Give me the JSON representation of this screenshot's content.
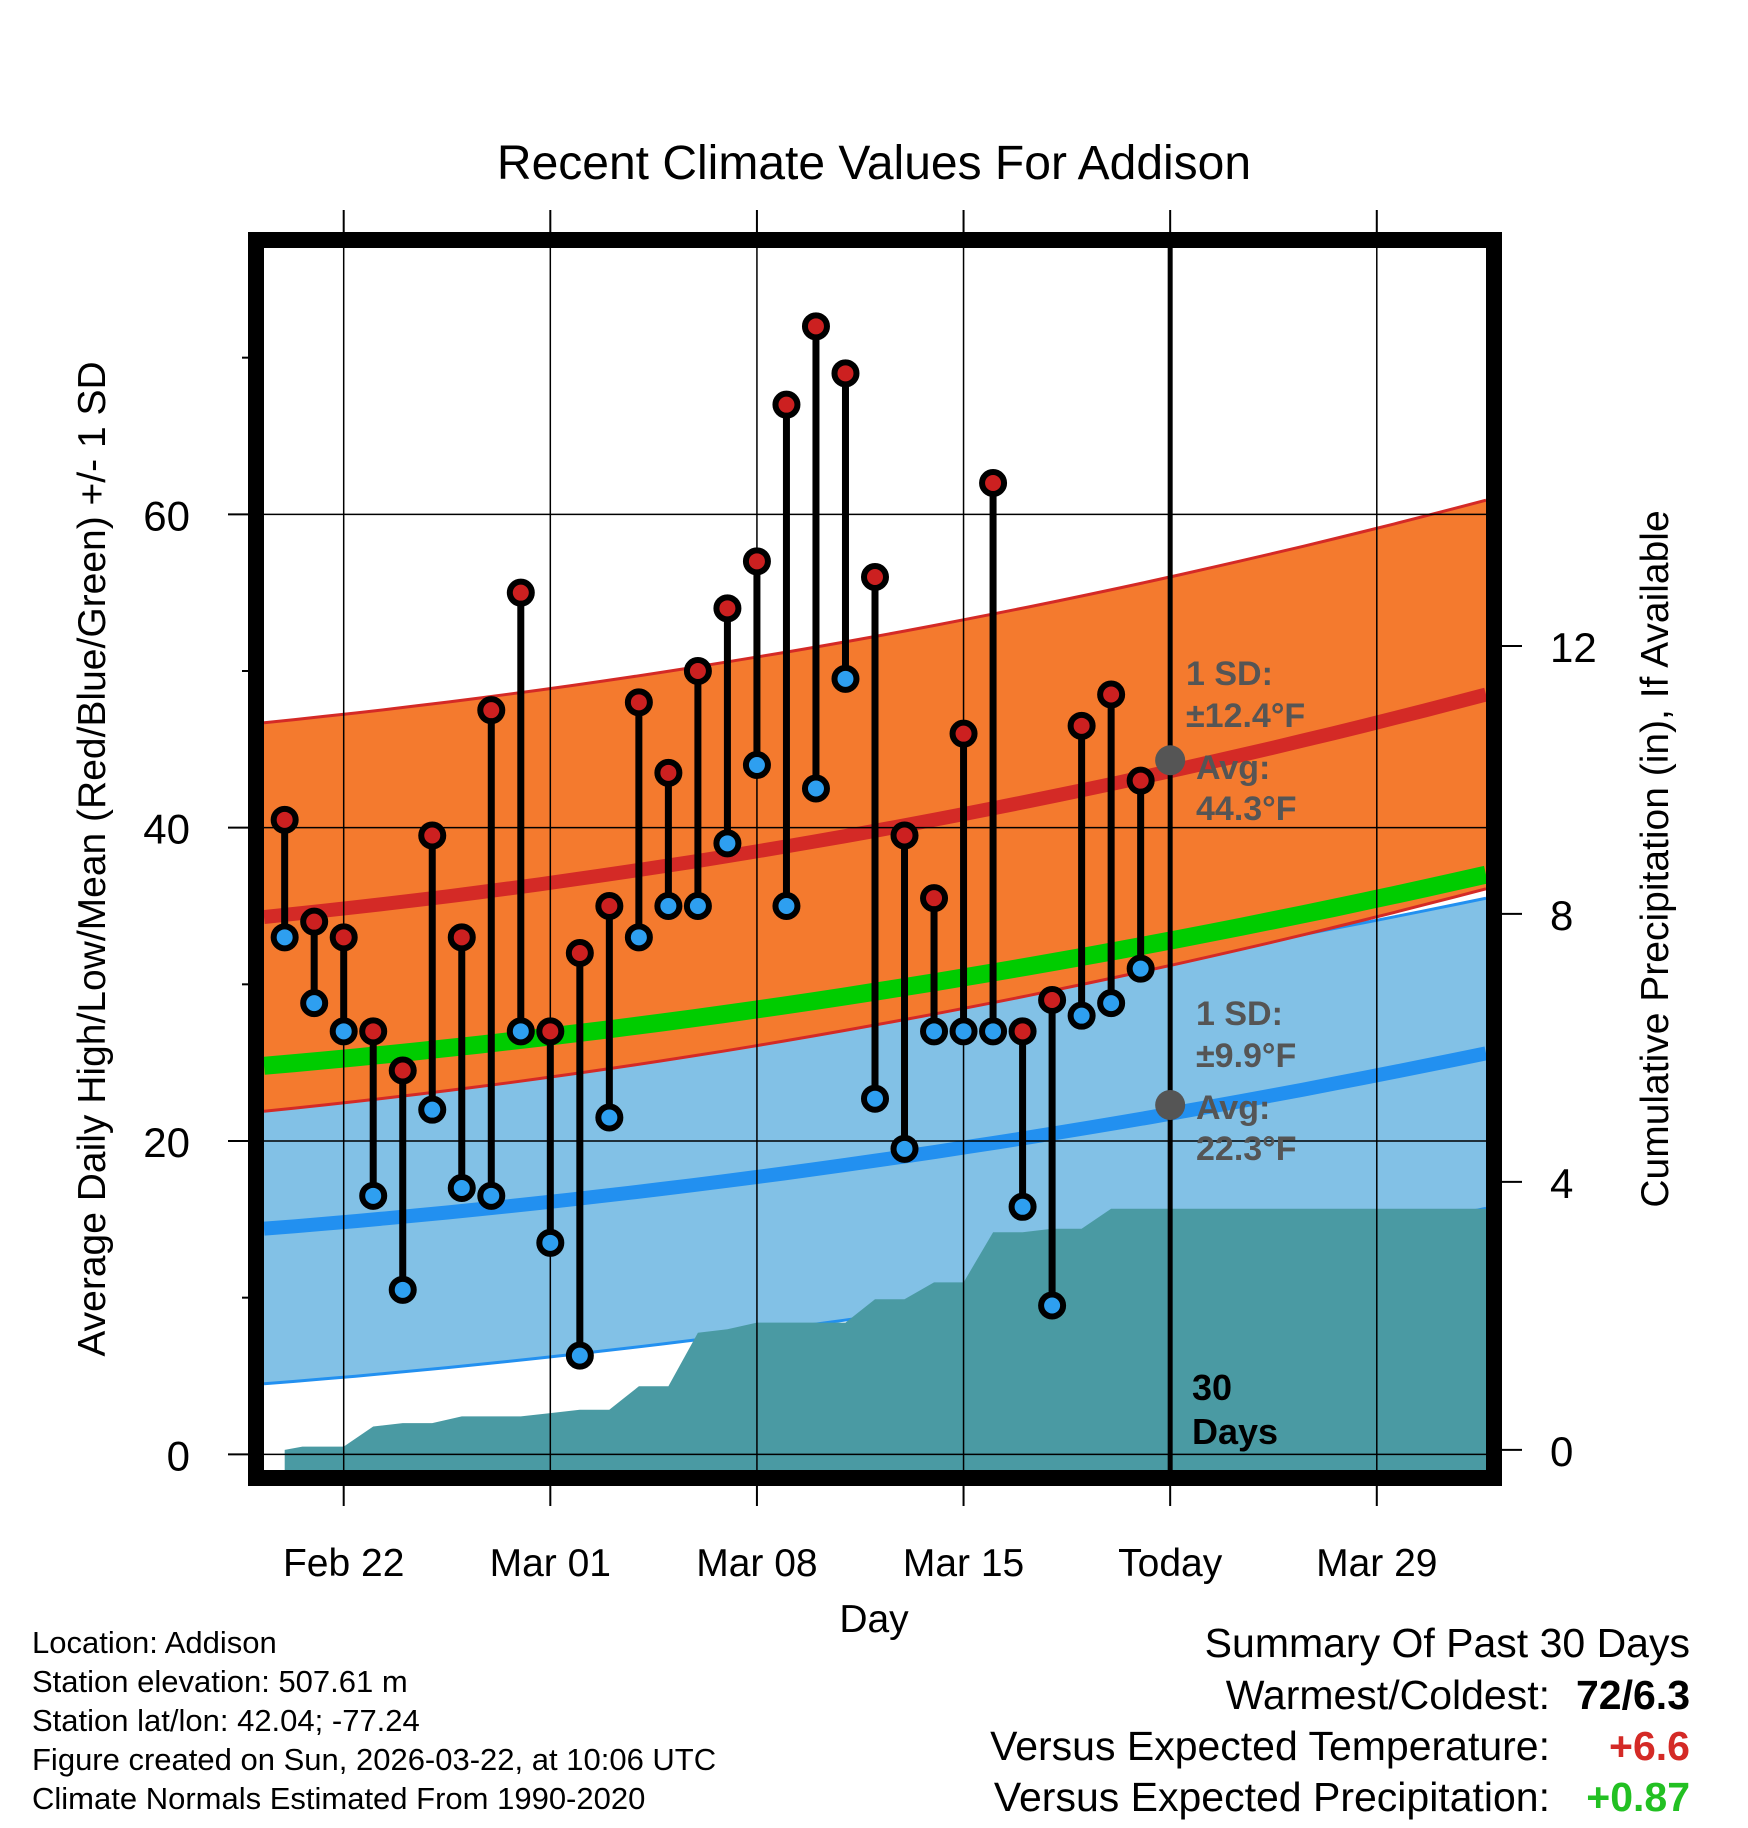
{
  "title": "Recent Climate Values For Addison",
  "chart_data": {
    "type": "line",
    "title": "Recent Climate Values For Addison",
    "xlabel": "Day",
    "ylabel_left": "Average Daily High/Low/Mean (Red/Blue/Green) +/- 1 SD",
    "ylabel_right": "Cumulative Precipitation (in), If Available",
    "x_tick_labels": [
      "Feb 22",
      "Mar 01",
      "Mar 08",
      "Mar 15",
      "Today",
      "Mar 29"
    ],
    "x_tick_days": [
      2,
      9,
      16,
      23,
      30,
      37
    ],
    "xlim": [
      -0.7,
      40.7
    ],
    "ylim_left": [
      -1,
      77
    ],
    "left_ticks": [
      0,
      20,
      40,
      60
    ],
    "left_minor_ticks": [
      10,
      30,
      50,
      70
    ],
    "ylim_right": [
      -0.3,
      17.94
    ],
    "right_ticks": [
      0,
      4,
      8,
      12
    ],
    "today_day": 30,
    "today_label": "30\nDays",
    "days_high_low": [
      0,
      1,
      2,
      3,
      4,
      5,
      6,
      7,
      8,
      9,
      10,
      11,
      12,
      13,
      14,
      15,
      16,
      17,
      18,
      19,
      20,
      21,
      22,
      23,
      24,
      25,
      26,
      27,
      28,
      29
    ],
    "highs": [
      40.5,
      34,
      33,
      27,
      24.5,
      39.5,
      33,
      47.5,
      55,
      27,
      32,
      35,
      48,
      43.5,
      50,
      54,
      57,
      67,
      72,
      69,
      56,
      39.5,
      35.5,
      46,
      62,
      27,
      29,
      46.5,
      48.5,
      43
    ],
    "lows": [
      33,
      28.8,
      27,
      16.5,
      10.5,
      22,
      17,
      16.5,
      27,
      13.5,
      6.3,
      21.5,
      33,
      35,
      35,
      39,
      44,
      35,
      42.5,
      49.5,
      22.7,
      19.5,
      27,
      27,
      27,
      15.8,
      9.5,
      28,
      28.8,
      31
    ],
    "normal_high_start": 34.3,
    "normal_high_end": 48.5,
    "normal_high_sd": 12.4,
    "normal_low_start": 14.4,
    "normal_low_end": 25.6,
    "normal_low_sd": 9.9,
    "normal_mean_start": 24.8,
    "normal_mean_end": 37.0,
    "precip_steps": [
      [
        0,
        0
      ],
      [
        0.6,
        0.05
      ],
      [
        1,
        0.05
      ],
      [
        2,
        0.05
      ],
      [
        3,
        0.35
      ],
      [
        4,
        0.4
      ],
      [
        5,
        0.4
      ],
      [
        6,
        0.5
      ],
      [
        7,
        0.5
      ],
      [
        8,
        0.5
      ],
      [
        9,
        0.55
      ],
      [
        10,
        0.6
      ],
      [
        11,
        0.6
      ],
      [
        12,
        0.95
      ],
      [
        13,
        0.95
      ],
      [
        14,
        1.75
      ],
      [
        15,
        1.8
      ],
      [
        16,
        1.9
      ],
      [
        17,
        1.9
      ],
      [
        18,
        1.9
      ],
      [
        19,
        1.9
      ],
      [
        20,
        2.25
      ],
      [
        21,
        2.25
      ],
      [
        22,
        2.5
      ],
      [
        23,
        2.5
      ],
      [
        24,
        3.25
      ],
      [
        25,
        3.25
      ],
      [
        26,
        3.3
      ],
      [
        27,
        3.3
      ],
      [
        28,
        3.6
      ],
      [
        29,
        3.6
      ],
      [
        30,
        3.6
      ],
      [
        40.7,
        3.6
      ]
    ],
    "high_annotation": {
      "sd": "1 SD:",
      "sd_val": "±12.4°F",
      "avg": "Avg:",
      "avg_val": "44.3°F",
      "avg_value": 44.3
    },
    "low_annotation": {
      "sd": "1 SD:",
      "sd_val": "±9.9°F",
      "avg": "Avg:",
      "avg_val": "22.3°F",
      "avg_value": 22.3
    }
  },
  "colors": {
    "high_band": "#f47a2e",
    "high_line": "#d42a26",
    "low_band": "#82c1e6",
    "low_line": "#2290f0",
    "mean_line": "#00cc00",
    "precip": "#4a9aa3",
    "annotation": "#555555",
    "high_dot": "#cc2020",
    "low_dot": "#2e9ff0",
    "warm": "#d42a26",
    "wet": "#22c022"
  },
  "metadata": {
    "location": "Location: Addison",
    "elevation": "Station elevation: 507.61 m",
    "latlon": "Station lat/lon: 42.04; -77.24",
    "created": "Figure created on Sun, 2026-03-22, at 10:06 UTC",
    "normals": "Climate Normals Estimated From 1990-2020"
  },
  "summary": {
    "title": "Summary Of Past 30 Days",
    "warmest_label": "Warmest/Coldest:",
    "warmest_value": "72/6.3",
    "temp_label": "Versus Expected Temperature:",
    "temp_value": "+6.6",
    "precip_label": "Versus Expected Precipitation:",
    "precip_value": "+0.87"
  }
}
